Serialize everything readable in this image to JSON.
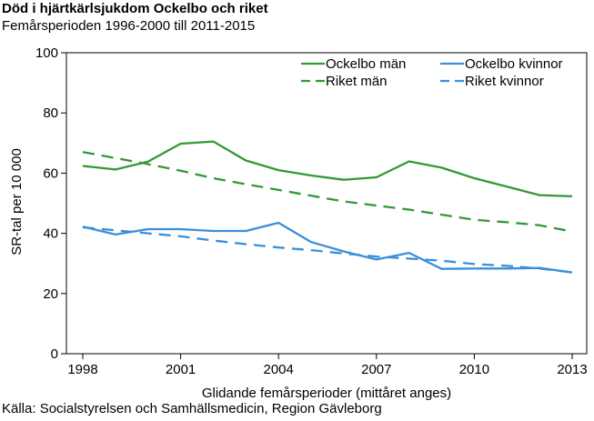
{
  "title": "Död i hjärtkärlsjukdom Ockelbo och riket",
  "subtitle": "Femårsperioden 1996-2000 till 2011-2015",
  "source": "Källa: Socialstyrelsen och Samhällsmedicin, Region Gävleborg",
  "chart_data": {
    "type": "line",
    "xlabel": "Glidande femårsperioder (mittåret anges)",
    "ylabel": "SR-tal per 10 000",
    "xlim": [
      1998,
      2013
    ],
    "ylim": [
      0,
      100
    ],
    "x_ticks": [
      1998,
      2001,
      2004,
      2007,
      2010,
      2013
    ],
    "y_ticks": [
      0,
      20,
      40,
      60,
      80,
      100
    ],
    "grid": false,
    "legend_position": "top-right",
    "x": [
      1998,
      1999,
      2000,
      2001,
      2002,
      2003,
      2004,
      2005,
      2006,
      2007,
      2008,
      2009,
      2010,
      2011,
      2012,
      2013
    ],
    "series": [
      {
        "name": "Ockelbo män",
        "color": "#339933",
        "dash": "solid",
        "values": [
          62.4,
          61.2,
          63.8,
          69.8,
          70.5,
          64.2,
          61.0,
          59.2,
          57.8,
          58.6,
          63.9,
          61.8,
          58.3,
          55.5,
          52.7,
          52.3
        ]
      },
      {
        "name": "Ockelbo kvinnor",
        "color": "#3a8fd9",
        "dash": "solid",
        "values": [
          42.2,
          39.6,
          41.4,
          41.4,
          40.8,
          40.8,
          43.5,
          37.1,
          34.0,
          31.3,
          33.5,
          28.2,
          28.3,
          28.3,
          28.5,
          27.0
        ]
      },
      {
        "name": "Riket män",
        "color": "#339933",
        "dash": "dashed",
        "values": [
          67.0,
          65.0,
          63.0,
          60.8,
          58.3,
          56.3,
          54.4,
          52.5,
          50.6,
          49.2,
          47.9,
          46.2,
          44.5,
          43.7,
          42.7,
          40.6
        ]
      },
      {
        "name": "Riket kvinnor",
        "color": "#3a8fd9",
        "dash": "dashed",
        "values": [
          42.0,
          41.0,
          40.0,
          39.0,
          37.6,
          36.4,
          35.3,
          34.4,
          33.3,
          32.3,
          31.6,
          30.9,
          29.8,
          29.2,
          28.3,
          27.0
        ]
      }
    ]
  }
}
